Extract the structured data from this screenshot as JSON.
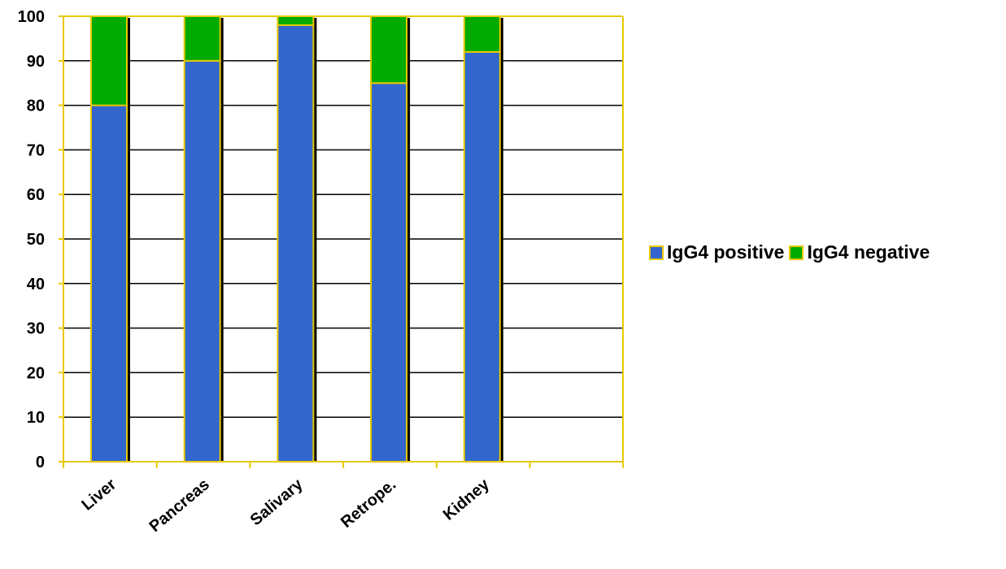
{
  "chart_data": {
    "type": "bar",
    "stacked": true,
    "categories": [
      "Liver",
      "Pancreas",
      "Salivary",
      "Retrope.",
      "Kidney"
    ],
    "series": [
      {
        "name": "IgG4 positive",
        "values": [
          80,
          90,
          98,
          85,
          92
        ],
        "color": "#3366cc"
      },
      {
        "name": "IgG4 negative",
        "values": [
          20,
          10,
          2,
          15,
          8
        ],
        "color": "#00aa00"
      }
    ],
    "ylim": [
      0,
      100
    ],
    "yticks": [
      "0",
      "10",
      "20",
      "30",
      "40",
      "50",
      "60",
      "70",
      "80",
      "90",
      "100"
    ],
    "grid": true,
    "legend_position": "right",
    "border_color": "#e8c800",
    "shadow_color": "#000000"
  }
}
